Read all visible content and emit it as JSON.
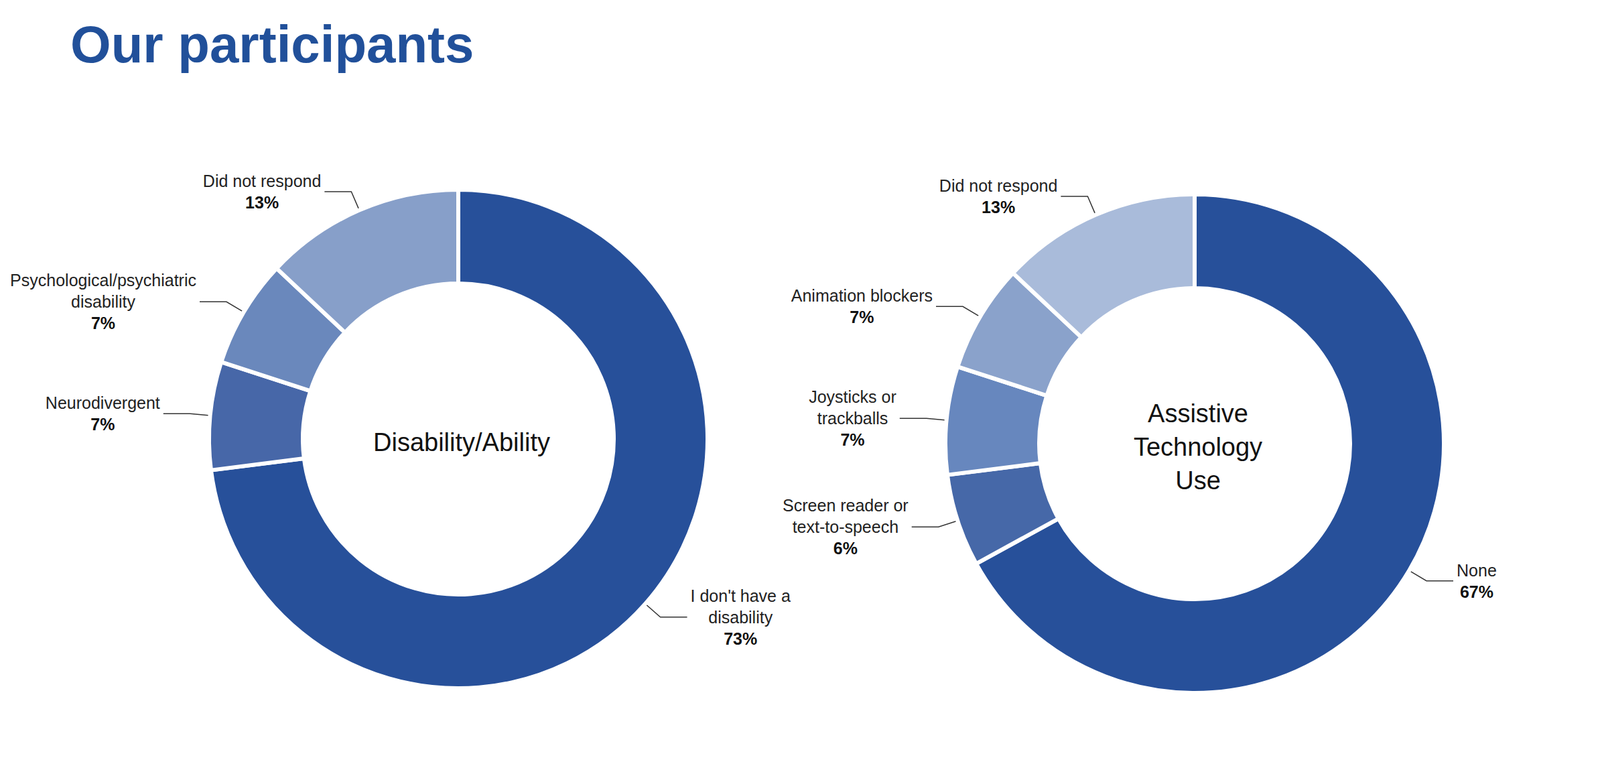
{
  "title": "Our participants",
  "chart_data": [
    {
      "type": "pie",
      "title": "Disability/Ability",
      "categories": [
        "I don't have a disability",
        "Neurodivergent",
        "Psychological/psychiatric disability",
        "Did not respond"
      ],
      "values": [
        73,
        7,
        7,
        13
      ],
      "value_labels": [
        "73%",
        "7%",
        "7%",
        "13%"
      ],
      "colors": [
        "#27509a",
        "#4767a8",
        "#6a88bc",
        "#879fc9"
      ],
      "data_labels": true
    },
    {
      "type": "pie",
      "title": "Assistive Technology Use",
      "categories": [
        "None",
        "Screen reader or text-to-speech",
        "Joysticks or trackballs",
        "Animation blockers",
        "Did not respond"
      ],
      "values": [
        67,
        6,
        7,
        7,
        13
      ],
      "value_labels": [
        "67%",
        "6%",
        "7%",
        "7%",
        "13%"
      ],
      "colors": [
        "#27509a",
        "#4668a8",
        "#6787be",
        "#8aa2cb",
        "#a9bbda"
      ],
      "data_labels": true
    }
  ]
}
